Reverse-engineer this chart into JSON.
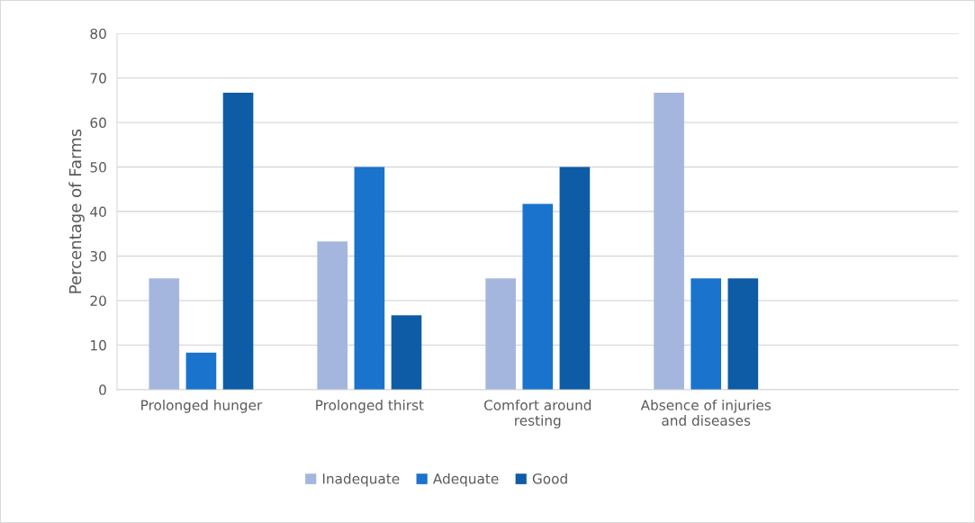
{
  "chart_data": {
    "type": "bar",
    "ylabel": "Percentage of Farms",
    "categories": [
      "Prolonged hunger",
      "Prolonged thirst",
      "Comfort around\nresting",
      "Absence of injuries\nand diseases",
      null
    ],
    "series": [
      {
        "name": "Inadequate",
        "color": "#a5b6de",
        "values": [
          25,
          33.3,
          25,
          66.7,
          null
        ]
      },
      {
        "name": "Adequate",
        "color": "#1a73cc",
        "values": [
          8.3,
          50,
          41.7,
          25,
          null
        ]
      },
      {
        "name": "Good",
        "color": "#0e5ca6",
        "values": [
          66.7,
          16.7,
          50,
          25,
          null
        ]
      }
    ],
    "ylim": [
      0,
      80
    ],
    "yticks": [
      0,
      10,
      20,
      30,
      40,
      50,
      60,
      70,
      80
    ],
    "grid": "y",
    "legend": "bottom"
  }
}
